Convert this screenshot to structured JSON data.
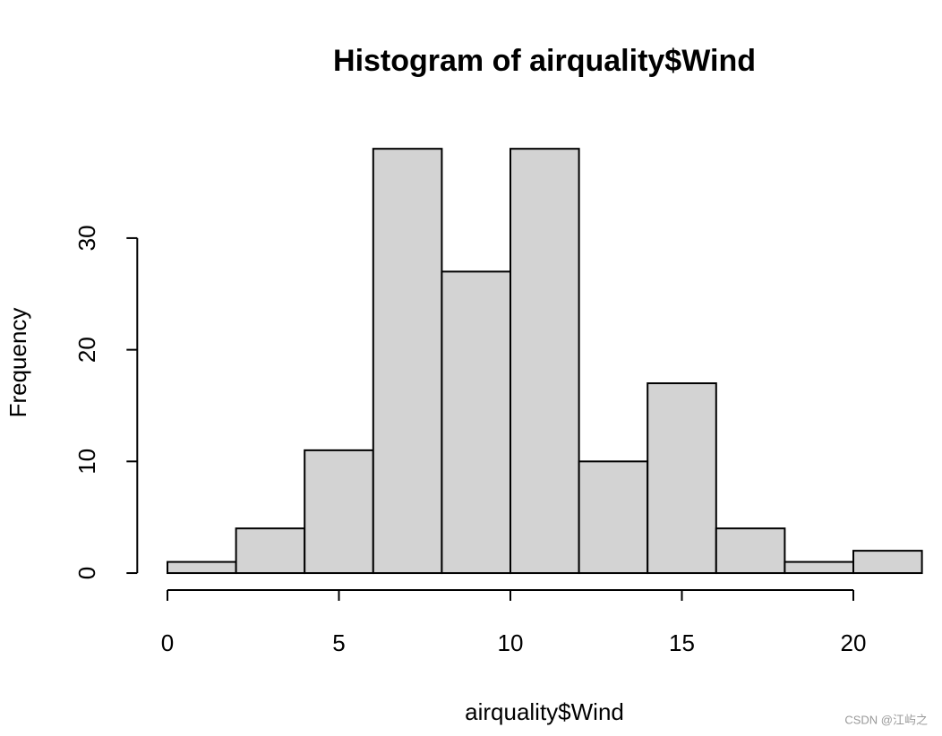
{
  "chart_data": {
    "type": "histogram",
    "title": "Histogram of airquality$Wind",
    "x_label": "airquality$Wind",
    "y_label": "Frequency",
    "bins": [
      0,
      2,
      4,
      6,
      8,
      10,
      12,
      14,
      16,
      18,
      20,
      22
    ],
    "values": [
      1,
      4,
      11,
      38,
      27,
      38,
      10,
      17,
      4,
      1,
      2
    ],
    "color": "#d3d3d3",
    "xlim": [
      -0.88,
      22.88
    ],
    "xticks": [
      0,
      5,
      10,
      15,
      20
    ],
    "ylim": [
      -1.52,
      39.52
    ],
    "yticks": [
      0,
      10,
      20,
      30
    ]
  },
  "watermark": "CSDN @江屿之"
}
